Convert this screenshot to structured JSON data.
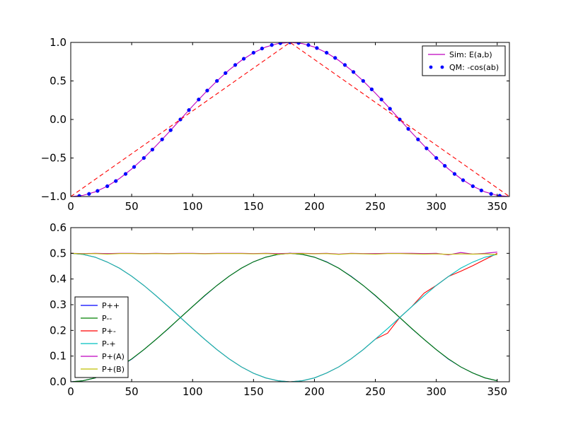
{
  "chart_data": [
    {
      "type": "line",
      "title": "",
      "xlabel": "",
      "ylabel": "",
      "xlim": [
        0,
        360
      ],
      "ylim": [
        -1.0,
        1.0
      ],
      "xticks": [
        0,
        50,
        100,
        150,
        200,
        250,
        300,
        350
      ],
      "yticks": [
        -1.0,
        -0.5,
        0.0,
        0.5,
        1.0
      ],
      "xtick_labels": [
        "0",
        "50",
        "100",
        "150",
        "200",
        "250",
        "300",
        "350"
      ],
      "ytick_labels": [
        "−1.0",
        "−0.5",
        "0.0",
        "0.5",
        "1.0"
      ],
      "grid": false,
      "legend_position": "top-right",
      "series": [
        {
          "name": "Sim: E(a,b)",
          "style": "solid",
          "color": "#bf00bf",
          "x": [
            0,
            10,
            20,
            30,
            40,
            50,
            60,
            70,
            80,
            90,
            100,
            110,
            120,
            130,
            140,
            150,
            160,
            170,
            180,
            190,
            200,
            210,
            220,
            230,
            240,
            250,
            260,
            270,
            280,
            290,
            300,
            310,
            320,
            330,
            340,
            350,
            360
          ],
          "values": [
            -1.0,
            -0.985,
            -0.94,
            -0.866,
            -0.766,
            -0.643,
            -0.5,
            -0.342,
            -0.174,
            0.0,
            0.174,
            0.342,
            0.5,
            0.643,
            0.766,
            0.866,
            0.94,
            0.985,
            1.0,
            0.985,
            0.94,
            0.866,
            0.766,
            0.643,
            0.5,
            0.342,
            0.174,
            0.0,
            -0.174,
            -0.342,
            -0.5,
            -0.643,
            -0.766,
            -0.866,
            -0.94,
            -0.985,
            -1.0
          ]
        },
        {
          "name": "QM: -cos(ab)",
          "style": "dots",
          "color": "#0000ff",
          "x": [
            7,
            15,
            22,
            30,
            37,
            45,
            52,
            60,
            67,
            75,
            82,
            90,
            97,
            105,
            112,
            120,
            127,
            135,
            142,
            150,
            157,
            165,
            172,
            180,
            187,
            195,
            202,
            210,
            217,
            225,
            232,
            240,
            247,
            255,
            262,
            270,
            277,
            285,
            292,
            300,
            307,
            315,
            322,
            330,
            337,
            345,
            352
          ],
          "values": [
            -0.993,
            -0.966,
            -0.927,
            -0.866,
            -0.799,
            -0.707,
            -0.616,
            -0.5,
            -0.391,
            -0.259,
            -0.139,
            0.0,
            0.122,
            0.259,
            0.375,
            0.5,
            0.602,
            0.707,
            0.788,
            0.866,
            0.921,
            0.966,
            0.99,
            1.0,
            0.993,
            0.966,
            0.927,
            0.866,
            0.799,
            0.707,
            0.616,
            0.5,
            0.391,
            0.259,
            0.139,
            0.0,
            -0.122,
            -0.259,
            -0.375,
            -0.5,
            -0.602,
            -0.707,
            -0.788,
            -0.866,
            -0.921,
            -0.966,
            -0.99
          ]
        },
        {
          "name": "",
          "style": "dashed",
          "color": "#ff0000",
          "x": [
            0,
            180,
            360
          ],
          "values": [
            -1.0,
            1.0,
            -1.0
          ]
        }
      ]
    },
    {
      "type": "line",
      "title": "",
      "xlabel": "",
      "ylabel": "",
      "xlim": [
        0,
        360
      ],
      "ylim": [
        0.0,
        0.6
      ],
      "xticks": [
        0,
        50,
        100,
        150,
        200,
        250,
        300,
        350
      ],
      "yticks": [
        0.0,
        0.1,
        0.2,
        0.3,
        0.4,
        0.5,
        0.6
      ],
      "xtick_labels": [
        "0",
        "50",
        "100",
        "150",
        "200",
        "250",
        "300",
        "350"
      ],
      "ytick_labels": [
        "0.0",
        "0.1",
        "0.2",
        "0.3",
        "0.4",
        "0.5",
        "0.6"
      ],
      "grid": false,
      "legend_position": "bottom-left",
      "x": [
        0,
        10,
        20,
        30,
        40,
        50,
        60,
        70,
        80,
        90,
        100,
        110,
        120,
        130,
        140,
        150,
        160,
        170,
        180,
        190,
        200,
        210,
        220,
        230,
        240,
        250,
        260,
        270,
        280,
        290,
        300,
        310,
        320,
        330,
        340,
        350
      ],
      "series": [
        {
          "name": "P++",
          "color": "#0000ff",
          "values": [
            0.0,
            0.004,
            0.015,
            0.034,
            0.058,
            0.088,
            0.125,
            0.165,
            0.206,
            0.25,
            0.293,
            0.335,
            0.375,
            0.411,
            0.442,
            0.467,
            0.485,
            0.496,
            0.5,
            0.496,
            0.485,
            0.467,
            0.442,
            0.411,
            0.375,
            0.335,
            0.293,
            0.25,
            0.206,
            0.165,
            0.125,
            0.088,
            0.058,
            0.034,
            0.015,
            0.004
          ]
        },
        {
          "name": "P--",
          "color": "#008000",
          "values": [
            0.0,
            0.004,
            0.015,
            0.034,
            0.058,
            0.089,
            0.125,
            0.165,
            0.207,
            0.25,
            0.293,
            0.336,
            0.375,
            0.411,
            0.442,
            0.467,
            0.485,
            0.496,
            0.5,
            0.496,
            0.485,
            0.466,
            0.442,
            0.41,
            0.375,
            0.336,
            0.293,
            0.25,
            0.207,
            0.165,
            0.125,
            0.089,
            0.058,
            0.034,
            0.015,
            0.004
          ]
        },
        {
          "name": "P+-",
          "color": "#ff0000",
          "values": [
            0.5,
            0.496,
            0.485,
            0.466,
            0.442,
            0.411,
            0.375,
            0.335,
            0.293,
            0.25,
            0.207,
            0.165,
            0.125,
            0.089,
            0.058,
            0.033,
            0.015,
            0.004,
            0.0,
            0.004,
            0.015,
            0.034,
            0.058,
            0.089,
            0.125,
            0.166,
            0.189,
            0.25,
            0.293,
            0.345,
            0.375,
            0.41,
            0.43,
            0.452,
            0.476,
            0.5
          ]
        },
        {
          "name": "P-+",
          "color": "#00bfbf",
          "values": [
            0.5,
            0.496,
            0.485,
            0.466,
            0.442,
            0.411,
            0.375,
            0.335,
            0.293,
            0.25,
            0.207,
            0.165,
            0.125,
            0.089,
            0.058,
            0.033,
            0.015,
            0.004,
            0.0,
            0.004,
            0.015,
            0.034,
            0.058,
            0.089,
            0.125,
            0.166,
            0.207,
            0.25,
            0.293,
            0.335,
            0.375,
            0.41,
            0.442,
            0.466,
            0.485,
            0.496
          ]
        },
        {
          "name": "P+(A)",
          "color": "#bf00bf",
          "values": [
            0.5,
            0.499,
            0.5,
            0.499,
            0.5,
            0.5,
            0.499,
            0.5,
            0.499,
            0.5,
            0.5,
            0.499,
            0.5,
            0.5,
            0.5,
            0.499,
            0.5,
            0.499,
            0.5,
            0.5,
            0.499,
            0.5,
            0.497,
            0.5,
            0.499,
            0.499,
            0.5,
            0.5,
            0.5,
            0.499,
            0.5,
            0.494,
            0.503,
            0.497,
            0.5,
            0.505
          ]
        },
        {
          "name": "P+(B)",
          "color": "#bfbf00",
          "values": [
            0.5,
            0.498,
            0.499,
            0.497,
            0.499,
            0.499,
            0.498,
            0.499,
            0.498,
            0.499,
            0.499,
            0.498,
            0.499,
            0.499,
            0.499,
            0.498,
            0.499,
            0.497,
            0.499,
            0.499,
            0.498,
            0.499,
            0.496,
            0.499,
            0.498,
            0.497,
            0.499,
            0.499,
            0.498,
            0.497,
            0.498,
            0.496,
            0.498,
            0.497,
            0.498,
            0.495
          ]
        }
      ]
    }
  ]
}
